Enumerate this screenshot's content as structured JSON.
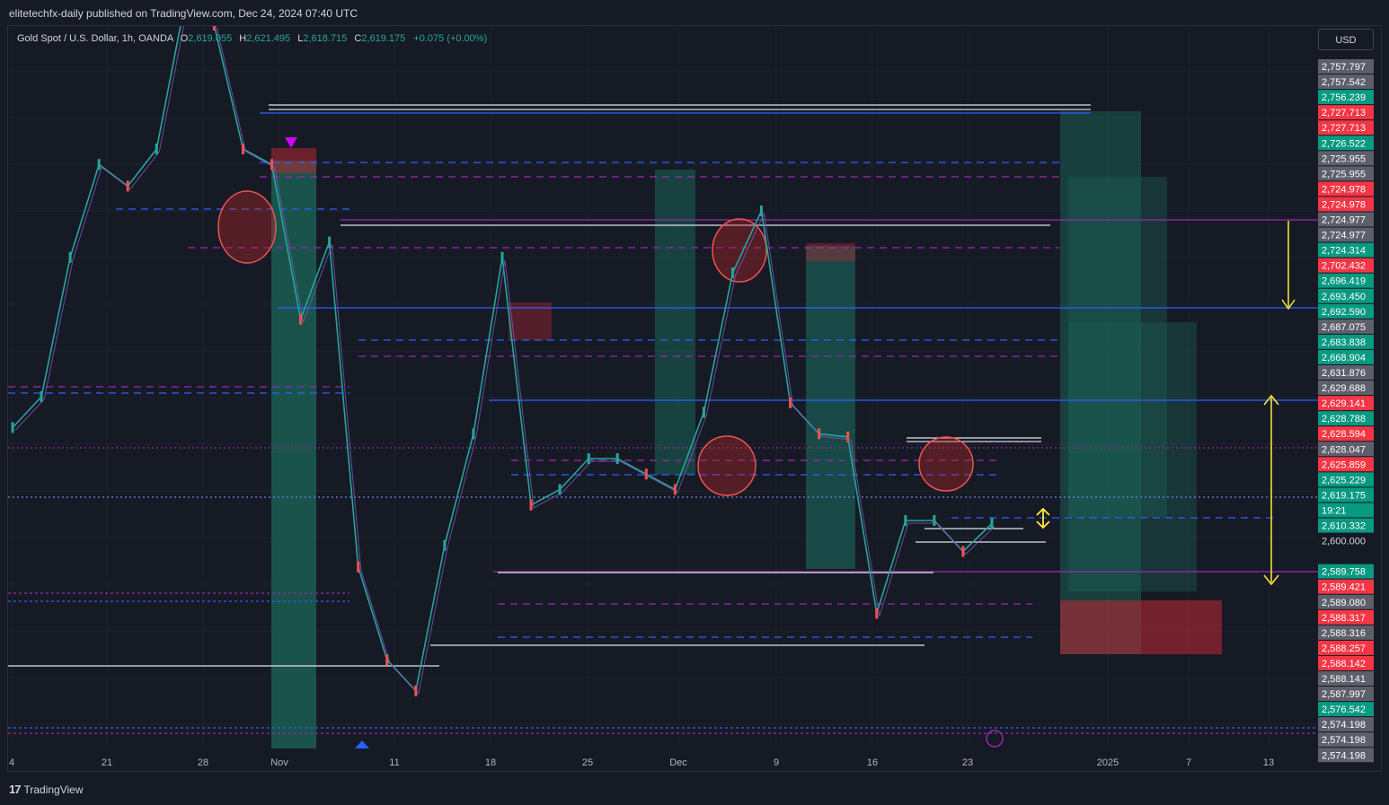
{
  "header": {
    "publisher_text": "elitetechfx-daily published on TradingView.com, Dec 24, 2024 07:40 UTC"
  },
  "legend": {
    "symbol": "Gold Spot / U.S. Dollar, 1h, OANDA",
    "o_label": "O",
    "o_value": "2,619.055",
    "h_label": "H",
    "h_value": "2,621.495",
    "l_label": "L",
    "l_value": "2,618.715",
    "c_label": "C",
    "c_value": "2,619.175",
    "change": "+0.075 (+0.00%)"
  },
  "currency": "USD",
  "countdown": "19:21",
  "footer": {
    "brand": "TradingView",
    "logo_glyph": "17"
  },
  "colors": {
    "background": "#161a25",
    "grid": "#1e222d",
    "up": "#26a69a",
    "down": "#ef5350",
    "blue_line": "#2962ff",
    "purple_line": "#9c27b0",
    "white_line": "#e0e3eb",
    "yellow": "#ffeb3b"
  },
  "price_scale": [
    {
      "label": "2,757.797",
      "color": "#5d606b"
    },
    {
      "label": "2,757.542",
      "color": "#5d606b"
    },
    {
      "label": "2,756.239",
      "color": "#089981"
    },
    {
      "label": "2,727.713",
      "color": "#f23645"
    },
    {
      "label": "2,727.713",
      "color": "#f23645"
    },
    {
      "label": "2,726.522",
      "color": "#089981"
    },
    {
      "label": "2,725.955",
      "color": "#5d606b"
    },
    {
      "label": "2,725.955",
      "color": "#5d606b"
    },
    {
      "label": "2,724.978",
      "color": "#f23645"
    },
    {
      "label": "2,724.978",
      "color": "#f23645"
    },
    {
      "label": "2,724.977",
      "color": "#5d606b"
    },
    {
      "label": "2,724.977",
      "color": "#5d606b"
    },
    {
      "label": "2,724.314",
      "color": "#089981"
    },
    {
      "label": "2,702.432",
      "color": "#f23645"
    },
    {
      "label": "2,696.419",
      "color": "#089981"
    },
    {
      "label": "2,693.450",
      "color": "#089981"
    },
    {
      "label": "2,692.590",
      "color": "#089981"
    },
    {
      "label": "2,687.075",
      "color": "#5d606b"
    },
    {
      "label": "2,683.838",
      "color": "#089981"
    },
    {
      "label": "2,668.904",
      "color": "#089981"
    },
    {
      "label": "2,631.876",
      "color": "#5d606b"
    },
    {
      "label": "2,629.688",
      "color": "#5d606b"
    },
    {
      "label": "2,629.141",
      "color": "#f23645"
    },
    {
      "label": "2,628.788",
      "color": "#089981"
    },
    {
      "label": "2,628.594",
      "color": "#f23645"
    },
    {
      "label": "2,628.047",
      "color": "#5d606b"
    },
    {
      "label": "2,625.859",
      "color": "#f23645"
    },
    {
      "label": "2,625.229",
      "color": "#089981"
    },
    {
      "label": "2,619.175",
      "color": "#089981"
    },
    {
      "label": "",
      "color": "#089981"
    },
    {
      "label": "2,610.332",
      "color": "#089981"
    },
    {
      "label": "2,600.000",
      "color": ""
    },
    {
      "label": "",
      "color": ""
    },
    {
      "label": "2,589.758",
      "color": "#089981"
    },
    {
      "label": "2,589.421",
      "color": "#f23645"
    },
    {
      "label": "2,589.080",
      "color": "#5d606b"
    },
    {
      "label": "2,588.317",
      "color": "#f23645"
    },
    {
      "label": "2,588.316",
      "color": "#5d606b"
    },
    {
      "label": "2,588.257",
      "color": "#f23645"
    },
    {
      "label": "2,588.142",
      "color": "#f23645"
    },
    {
      "label": "2,588.141",
      "color": "#5d606b"
    },
    {
      "label": "2,587.997",
      "color": "#5d606b"
    },
    {
      "label": "2,576.542",
      "color": "#089981"
    },
    {
      "label": "2,574.198",
      "color": "#5d606b"
    },
    {
      "label": "2,574.198",
      "color": "#5d606b"
    },
    {
      "label": "2,574.198",
      "color": "#5d606b"
    }
  ],
  "chart_data": {
    "type": "line",
    "symbol": "Gold Spot / U.S. Dollar",
    "timeframe": "1h",
    "x_ticks": [
      "4",
      "21",
      "28",
      "Nov",
      "11",
      "18",
      "25",
      "Dec",
      "9",
      "16",
      "23",
      "2025",
      "7",
      "13"
    ],
    "x": [
      "Oct 14",
      "Oct 17",
      "Oct 21",
      "Oct 23",
      "Oct 25",
      "Oct 28",
      "Oct 30",
      "Oct 31",
      "Nov 4",
      "Nov 6",
      "Nov 8",
      "Nov 11",
      "Nov 13",
      "Nov 14",
      "Nov 15",
      "Nov 18",
      "Nov 20",
      "Nov 22",
      "Nov 25",
      "Nov 26",
      "Nov 28",
      "Dec 2",
      "Dec 4",
      "Dec 6",
      "Dec 9",
      "Dec 11",
      "Dec 12",
      "Dec 13",
      "Dec 16",
      "Dec 17",
      "Dec 18",
      "Dec 19",
      "Dec 20",
      "Dec 23",
      "Dec 24"
    ],
    "series": [
      {
        "values": [
          2650,
          2660,
          2705,
          2735,
          2728,
          2740,
          2788,
          2780,
          2740,
          2735,
          2685,
          2710,
          2605,
          2575,
          2565,
          2612,
          2648,
          2705,
          2625,
          2630,
          2640,
          2640,
          2635,
          2630,
          2655,
          2700,
          2720,
          2658,
          2648,
          2647,
          2590,
          2620,
          2620,
          2610,
          2619
        ]
      }
    ],
    "current_price": 2619.175
  }
}
